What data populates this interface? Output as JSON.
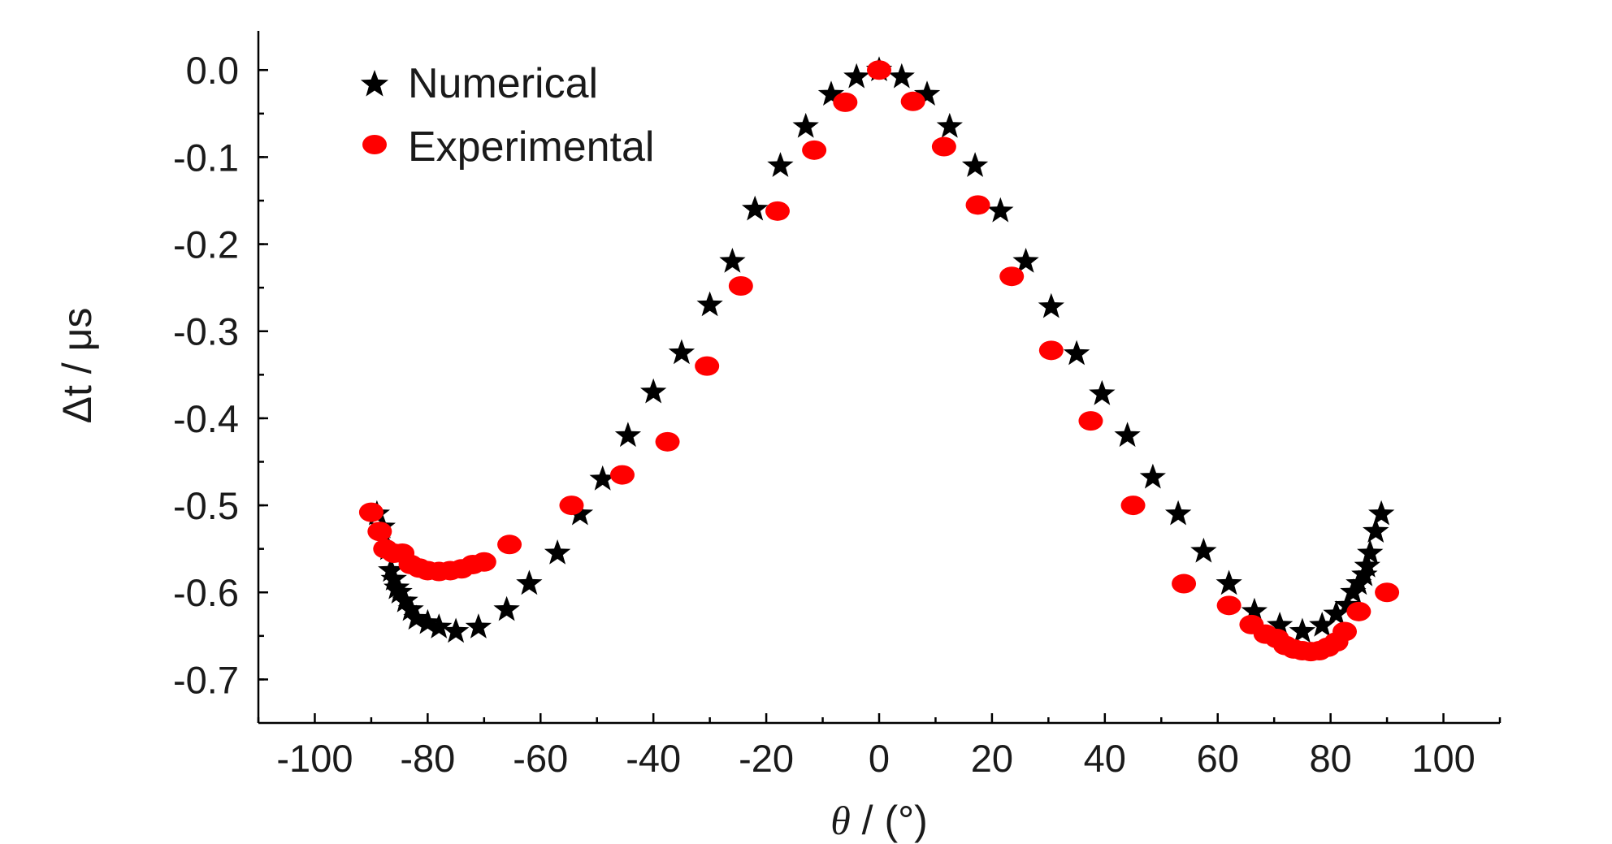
{
  "chart_data": {
    "type": "scatter",
    "title": "",
    "xlabel_symbol": "θ",
    "xlabel_unit": " / (°)",
    "ylabel_symbol": "Δt",
    "ylabel_unit": " / μs",
    "xlim": [
      -110,
      110
    ],
    "ylim": [
      -0.75,
      0.045
    ],
    "x_ticks": [
      -100,
      -80,
      -60,
      -40,
      -20,
      0,
      20,
      40,
      60,
      80,
      100
    ],
    "x_tick_labels": [
      "-100",
      "-80",
      "-60",
      "-40",
      "-20",
      "0",
      "20",
      "40",
      "60",
      "80",
      "100"
    ],
    "y_ticks": [
      0.0,
      -0.1,
      -0.2,
      -0.3,
      -0.4,
      -0.5,
      -0.6,
      -0.7
    ],
    "y_tick_labels": [
      "0.0",
      "-0.1",
      "-0.2",
      "-0.3",
      "-0.4",
      "-0.5",
      "-0.6",
      "-0.7"
    ],
    "grid": false,
    "legend_position": "top-left",
    "series": [
      {
        "name": "Numerical",
        "marker": "star",
        "color": "#000000",
        "points": [
          [
            -89,
            -0.51
          ],
          [
            -88,
            -0.525
          ],
          [
            -87,
            -0.55
          ],
          [
            -86.5,
            -0.575
          ],
          [
            -86,
            -0.585
          ],
          [
            -85.5,
            -0.595
          ],
          [
            -85,
            -0.6
          ],
          [
            -84,
            -0.61
          ],
          [
            -83,
            -0.62
          ],
          [
            -82,
            -0.63
          ],
          [
            -80,
            -0.635
          ],
          [
            -78,
            -0.64
          ],
          [
            -75,
            -0.645
          ],
          [
            -71,
            -0.64
          ],
          [
            -66,
            -0.62
          ],
          [
            -62,
            -0.59
          ],
          [
            -57,
            -0.555
          ],
          [
            -53,
            -0.51
          ],
          [
            -49,
            -0.47
          ],
          [
            -44.5,
            -0.42
          ],
          [
            -40,
            -0.37
          ],
          [
            -35,
            -0.325
          ],
          [
            -30,
            -0.27
          ],
          [
            -26,
            -0.22
          ],
          [
            -22,
            -0.16
          ],
          [
            -17.5,
            -0.11
          ],
          [
            -13,
            -0.065
          ],
          [
            -8.5,
            -0.028
          ],
          [
            -4,
            -0.008
          ],
          [
            0,
            0.0
          ],
          [
            4,
            -0.008
          ],
          [
            8.5,
            -0.028
          ],
          [
            12.5,
            -0.065
          ],
          [
            17,
            -0.11
          ],
          [
            21.5,
            -0.162
          ],
          [
            26,
            -0.22
          ],
          [
            30.5,
            -0.272
          ],
          [
            35,
            -0.326
          ],
          [
            39.5,
            -0.372
          ],
          [
            44,
            -0.42
          ],
          [
            48.5,
            -0.468
          ],
          [
            53,
            -0.51
          ],
          [
            57.5,
            -0.553
          ],
          [
            62,
            -0.59
          ],
          [
            66.5,
            -0.622
          ],
          [
            71,
            -0.638
          ],
          [
            75,
            -0.645
          ],
          [
            78.5,
            -0.638
          ],
          [
            81,
            -0.625
          ],
          [
            83,
            -0.615
          ],
          [
            84,
            -0.6
          ],
          [
            85,
            -0.59
          ],
          [
            86,
            -0.58
          ],
          [
            86.5,
            -0.57
          ],
          [
            87,
            -0.555
          ],
          [
            88,
            -0.53
          ],
          [
            89,
            -0.51
          ]
        ]
      },
      {
        "name": "Experimental",
        "marker": "circle",
        "color": "#ff0000",
        "points": [
          [
            -90,
            -0.508
          ],
          [
            -88.5,
            -0.53
          ],
          [
            -87.5,
            -0.55
          ],
          [
            -86,
            -0.555
          ],
          [
            -84.5,
            -0.555
          ],
          [
            -83,
            -0.568
          ],
          [
            -81.5,
            -0.572
          ],
          [
            -80,
            -0.575
          ],
          [
            -78,
            -0.576
          ],
          [
            -76,
            -0.575
          ],
          [
            -74,
            -0.573
          ],
          [
            -72,
            -0.568
          ],
          [
            -70,
            -0.565
          ],
          [
            -65.5,
            -0.545
          ],
          [
            -54.5,
            -0.5
          ],
          [
            -45.5,
            -0.465
          ],
          [
            -37.5,
            -0.427
          ],
          [
            -30.5,
            -0.34
          ],
          [
            -24.5,
            -0.248
          ],
          [
            -18,
            -0.162
          ],
          [
            -11.5,
            -0.092
          ],
          [
            -6,
            -0.037
          ],
          [
            0,
            0.0
          ],
          [
            6,
            -0.036
          ],
          [
            11.5,
            -0.088
          ],
          [
            17.5,
            -0.155
          ],
          [
            23.5,
            -0.237
          ],
          [
            30.5,
            -0.322
          ],
          [
            37.5,
            -0.403
          ],
          [
            45,
            -0.5
          ],
          [
            54,
            -0.59
          ],
          [
            62,
            -0.615
          ],
          [
            66,
            -0.637
          ],
          [
            68.5,
            -0.648
          ],
          [
            70.5,
            -0.653
          ],
          [
            72,
            -0.661
          ],
          [
            73.5,
            -0.665
          ],
          [
            75,
            -0.667
          ],
          [
            76.5,
            -0.668
          ],
          [
            78,
            -0.667
          ],
          [
            79.5,
            -0.663
          ],
          [
            81,
            -0.657
          ],
          [
            82.5,
            -0.645
          ],
          [
            85,
            -0.622
          ],
          [
            90,
            -0.6
          ]
        ]
      }
    ]
  }
}
